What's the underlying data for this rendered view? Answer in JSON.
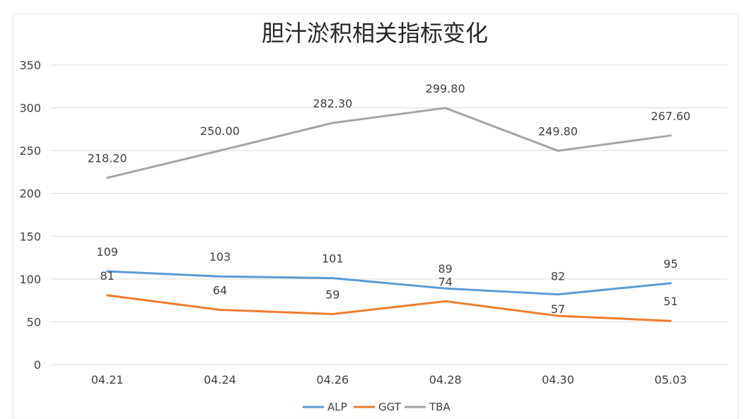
{
  "chart_data": {
    "type": "line",
    "title": "胆汁淤积相关指标变化",
    "categories": [
      "04.21",
      "04.24",
      "04.26",
      "04.28",
      "04.30",
      "05.03"
    ],
    "series": [
      {
        "name": "ALP",
        "color": "#5b9bd5",
        "values": [
          109,
          103,
          101,
          89,
          82,
          95
        ],
        "labels": [
          "109",
          "103",
          "101",
          "89",
          "82",
          "95"
        ]
      },
      {
        "name": "GGT",
        "color": "#ed7d31",
        "values": [
          81,
          64,
          59,
          74,
          57,
          51
        ],
        "labels": [
          "81",
          "64",
          "59",
          "74",
          "57",
          "51"
        ]
      },
      {
        "name": "TBA",
        "color": "#a5a5a5",
        "values": [
          218.2,
          250.0,
          282.3,
          299.8,
          249.8,
          267.6
        ],
        "labels": [
          "218.20",
          "250.00",
          "282.30",
          "299.80",
          "249.80",
          "267.60"
        ]
      }
    ],
    "ylim": [
      0,
      350
    ],
    "yticks": [
      "0",
      "50",
      "100",
      "150",
      "200",
      "250",
      "300",
      "350"
    ],
    "grid": true,
    "legend_position": "bottom"
  }
}
